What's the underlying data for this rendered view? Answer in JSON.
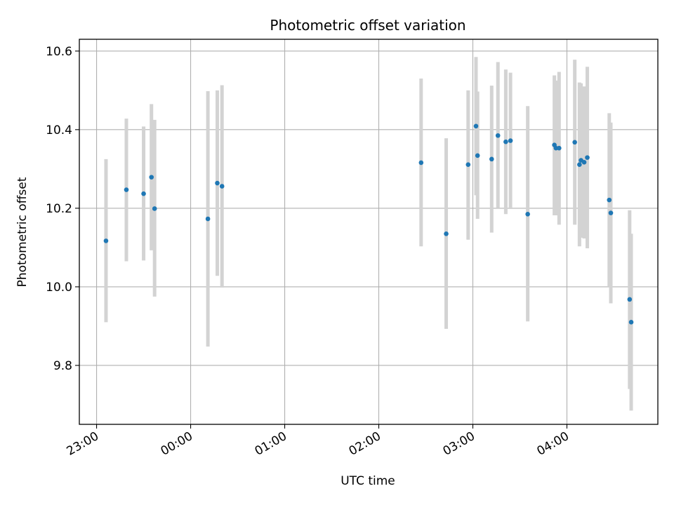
{
  "chart_data": {
    "type": "scatter",
    "title": "Photometric offset variation",
    "xlabel": "UTC time",
    "ylabel": "Photometric offset",
    "x_unit": "UTC time (HH:MM)",
    "x_range": [
      "22:49",
      "04:58"
    ],
    "xticks": [
      "23:00",
      "00:00",
      "01:00",
      "02:00",
      "03:00",
      "04:00"
    ],
    "ylim": [
      9.65,
      10.63
    ],
    "yticks": [
      9.8,
      10.0,
      10.2,
      10.4,
      10.6
    ],
    "ytick_labels": [
      "9.8",
      "10.0",
      "10.2",
      "10.4",
      "10.6"
    ],
    "grid": true,
    "colors": {
      "marker": "#1f77b4",
      "errorbar": "#d3d3d3",
      "grid": "#b0b0b0"
    },
    "series": [
      {
        "marker": "point with vertical error bar",
        "points": [
          {
            "x": "23:06",
            "y": 10.117,
            "ylow": 9.91,
            "yhigh": 10.325
          },
          {
            "x": "23:19",
            "y": 10.247,
            "ylow": 10.065,
            "yhigh": 10.428
          },
          {
            "x": "23:30",
            "y": 10.237,
            "ylow": 10.067,
            "yhigh": 10.408
          },
          {
            "x": "23:35",
            "y": 10.279,
            "ylow": 10.093,
            "yhigh": 10.465
          },
          {
            "x": "23:37",
            "y": 10.199,
            "ylow": 9.975,
            "yhigh": 10.425
          },
          {
            "x": "00:11",
            "y": 10.173,
            "ylow": 9.848,
            "yhigh": 10.498
          },
          {
            "x": "00:17",
            "y": 10.264,
            "ylow": 10.028,
            "yhigh": 10.5
          },
          {
            "x": "00:20",
            "y": 10.256,
            "ylow": 9.998,
            "yhigh": 10.513
          },
          {
            "x": "02:27",
            "y": 10.316,
            "ylow": 10.103,
            "yhigh": 10.53
          },
          {
            "x": "02:43",
            "y": 10.135,
            "ylow": 9.893,
            "yhigh": 10.378
          },
          {
            "x": "02:57",
            "y": 10.311,
            "ylow": 10.12,
            "yhigh": 10.5
          },
          {
            "x": "03:02",
            "y": 10.409,
            "ylow": 10.233,
            "yhigh": 10.585
          },
          {
            "x": "03:03",
            "y": 10.334,
            "ylow": 10.173,
            "yhigh": 10.497
          },
          {
            "x": "03:12",
            "y": 10.325,
            "ylow": 10.138,
            "yhigh": 10.512
          },
          {
            "x": "03:16",
            "y": 10.385,
            "ylow": 10.2,
            "yhigh": 10.572
          },
          {
            "x": "03:21",
            "y": 10.369,
            "ylow": 10.185,
            "yhigh": 10.553
          },
          {
            "x": "03:24",
            "y": 10.372,
            "ylow": 10.198,
            "yhigh": 10.545
          },
          {
            "x": "03:35",
            "y": 10.185,
            "ylow": 9.912,
            "yhigh": 10.46
          },
          {
            "x": "03:52",
            "y": 10.361,
            "ylow": 10.182,
            "yhigh": 10.538
          },
          {
            "x": "03:53",
            "y": 10.353,
            "ylow": 10.182,
            "yhigh": 10.525
          },
          {
            "x": "03:55",
            "y": 10.353,
            "ylow": 10.158,
            "yhigh": 10.547
          },
          {
            "x": "04:05",
            "y": 10.368,
            "ylow": 10.158,
            "yhigh": 10.578
          },
          {
            "x": "04:08",
            "y": 10.311,
            "ylow": 10.103,
            "yhigh": 10.52
          },
          {
            "x": "04:09",
            "y": 10.322,
            "ylow": 10.125,
            "yhigh": 10.518
          },
          {
            "x": "04:11",
            "y": 10.317,
            "ylow": 10.123,
            "yhigh": 10.51
          },
          {
            "x": "04:13",
            "y": 10.329,
            "ylow": 10.098,
            "yhigh": 10.56
          },
          {
            "x": "04:27",
            "y": 10.221,
            "ylow": 10.0,
            "yhigh": 10.442
          },
          {
            "x": "04:28",
            "y": 10.188,
            "ylow": 9.958,
            "yhigh": 10.418
          },
          {
            "x": "04:40",
            "y": 9.968,
            "ylow": 9.74,
            "yhigh": 10.195
          },
          {
            "x": "04:41",
            "y": 9.91,
            "ylow": 9.685,
            "yhigh": 10.135
          }
        ]
      }
    ]
  }
}
